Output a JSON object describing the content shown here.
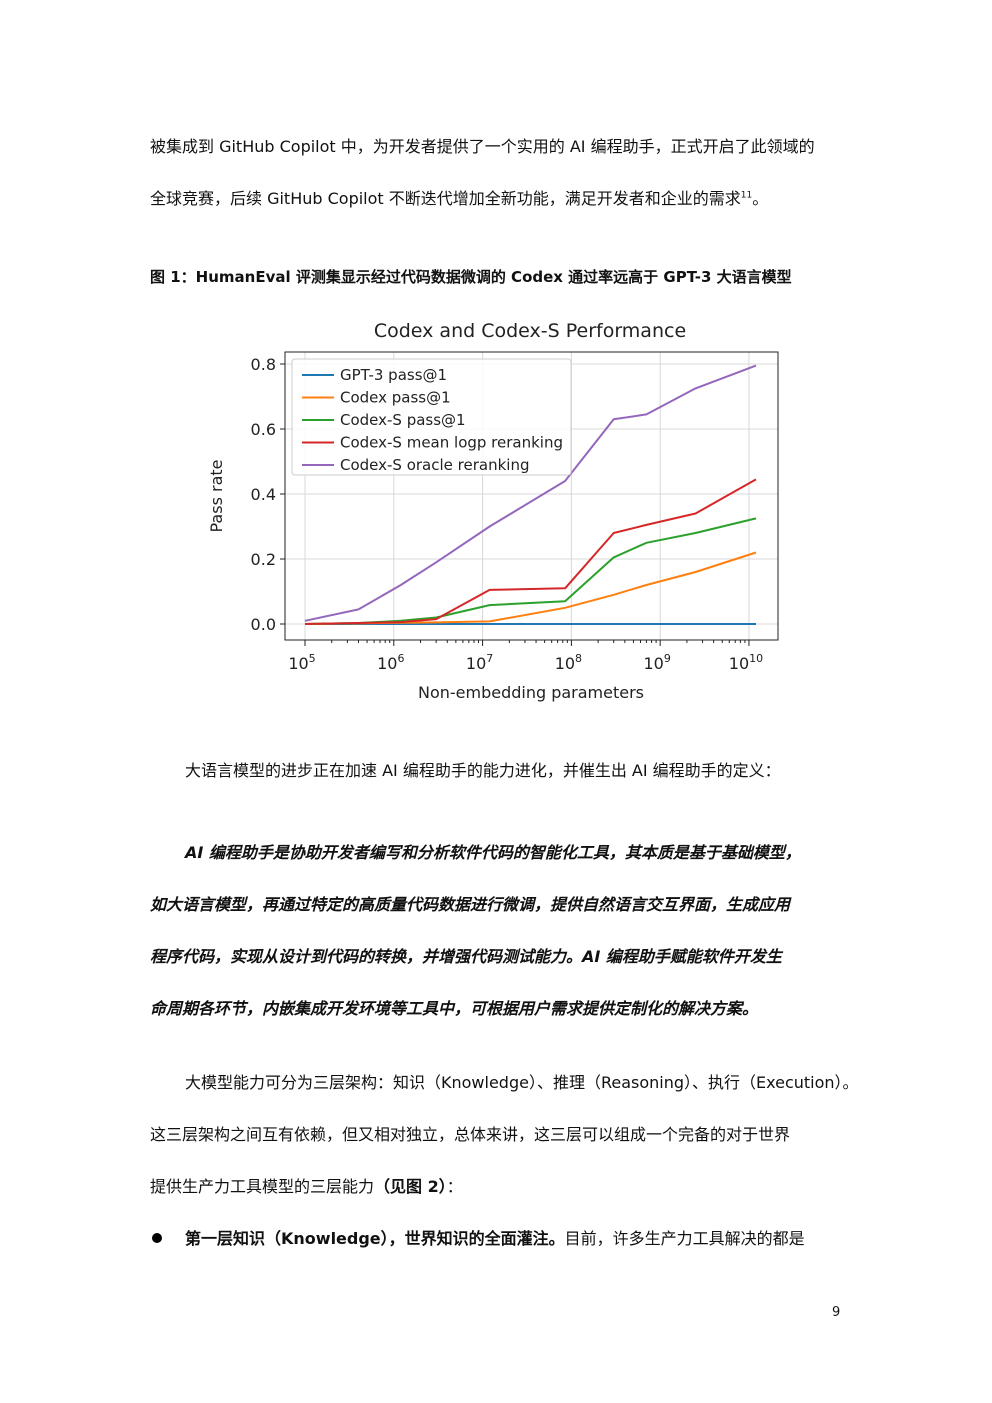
{
  "paragraphs": {
    "p1_line1": "被集成到 GitHub Copilot 中，为开发者提供了一个实用的 AI 编程助手，正式开启了此领域的",
    "p1_line2": "全球竞赛，后续 GitHub Copilot 不断迭代增加全新功能，满足开发者和企业的需求",
    "p1_footnote": "11",
    "p1_end": "。",
    "figure_caption": "图 1：HumanEval 评测集显示经过代码数据微调的 Codex 通过率远高于 GPT-3 大语言模型",
    "p2": "大语言模型的进步正在加速 AI 编程助手的能力进化，并催生出 AI 编程助手的定义：",
    "definition_lines": [
      "AI 编程助手是协助开发者编写和分析软件代码的智能化工具，其本质是基于基础模型，",
      "如大语言模型，再通过特定的高质量代码数据进行微调，提供自然语言交互界面，生成应用",
      "程序代码，实现从设计到代码的转换，并增强代码测试能力。AI 编程助手赋能软件开发生",
      "命周期各环节，内嵌集成开发环境等工具中，可根据用户需求提供定制化的解决方案。"
    ],
    "p3_line1": "大模型能力可分为三层架构：知识（Knowledge）、推理（Reasoning）、执行（Execution）。",
    "p3_line2": "这三层架构之间互有依赖，但又相对独立，总体来讲，这三层可以组成一个完备的对于世界",
    "p3_line3_a": "提供生产力工具模型的三层能力",
    "p3_line3_b": "（见图 2）",
    "p3_line3_c": "：",
    "bullet1_bold": "第一层知识（Knowledge），世界知识的全面灌注。",
    "bullet1_rest": "目前，许多生产力工具解决的都是"
  },
  "page_number": "9",
  "chart_data": {
    "type": "line",
    "title": "Codex and Codex-S Performance",
    "xlabel": "Non-embedding parameters",
    "ylabel": "Pass rate",
    "xscale": "log",
    "xlim": [
      100000,
      12000000000
    ],
    "ylim": [
      0,
      0.8
    ],
    "xticks": [
      100000,
      1000000,
      10000000,
      100000000,
      1000000000,
      10000000000
    ],
    "xtick_labels": [
      {
        "base": "10",
        "exp": "5"
      },
      {
        "base": "10",
        "exp": "6"
      },
      {
        "base": "10",
        "exp": "7"
      },
      {
        "base": "10",
        "exp": "8"
      },
      {
        "base": "10",
        "exp": "9"
      },
      {
        "base": "10",
        "exp": "10"
      }
    ],
    "yticks": [
      0.0,
      0.2,
      0.4,
      0.6,
      0.8
    ],
    "ytick_labels": [
      "0.0",
      "0.2",
      "0.4",
      "0.6",
      "0.8"
    ],
    "grid": true,
    "legend_position": "upper-left",
    "series": [
      {
        "name": "GPT-3 pass@1",
        "color": "#1f77b4",
        "x": [
          100000,
          400000,
          1200000,
          3000000,
          12000000,
          85000000,
          300000000,
          700000000,
          2500000000,
          12000000000
        ],
        "y": [
          0.0,
          0.0,
          0.0,
          0.0,
          0.0,
          0.0,
          0.0,
          0.0,
          0.0,
          0.0
        ]
      },
      {
        "name": "Codex pass@1",
        "color": "#ff7f0e",
        "x": [
          100000,
          400000,
          1200000,
          3000000,
          12000000,
          85000000,
          300000000,
          700000000,
          2500000000,
          12000000000
        ],
        "y": [
          0.0,
          0.002,
          0.004,
          0.005,
          0.008,
          0.05,
          0.09,
          0.12,
          0.16,
          0.22
        ]
      },
      {
        "name": "Codex-S pass@1",
        "color": "#2ca02c",
        "x": [
          100000,
          400000,
          1200000,
          3000000,
          12000000,
          85000000,
          300000000,
          700000000,
          2500000000,
          12000000000
        ],
        "y": [
          0.0,
          0.003,
          0.01,
          0.02,
          0.058,
          0.07,
          0.205,
          0.25,
          0.28,
          0.325
        ]
      },
      {
        "name": "Codex-S mean logp reranking",
        "color": "#d62728",
        "x": [
          100000,
          400000,
          1200000,
          3000000,
          12000000,
          85000000,
          300000000,
          700000000,
          2500000000,
          12000000000
        ],
        "y": [
          0.0,
          0.003,
          0.006,
          0.015,
          0.105,
          0.11,
          0.28,
          0.305,
          0.34,
          0.445
        ]
      },
      {
        "name": "Codex-S oracle reranking",
        "color": "#9467bd",
        "x": [
          100000,
          400000,
          1200000,
          3000000,
          12000000,
          85000000,
          300000000,
          700000000,
          2500000000,
          12000000000
        ],
        "y": [
          0.01,
          0.045,
          0.12,
          0.19,
          0.3,
          0.44,
          0.63,
          0.645,
          0.725,
          0.795
        ]
      }
    ]
  }
}
